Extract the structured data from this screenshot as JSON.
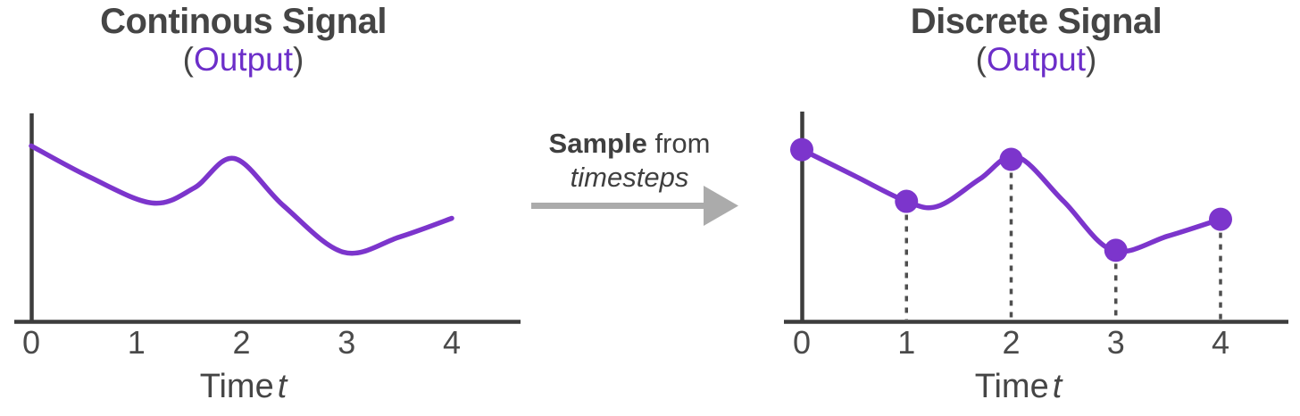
{
  "colors": {
    "background": "#ffffff",
    "curve_purple": "#7c35cc",
    "text_purple": "#6c2ec9",
    "title_gray": "#454545",
    "label_gray": "#4a4a4a",
    "axis_gray": "#3d3d3d",
    "dash_gray": "#4f4f4f",
    "arrow_gray": "#ababab",
    "annotation_gray": "#3f3f3f"
  },
  "transform_label": {
    "line1_bold": "Sample",
    "line1_rest": " from",
    "line2_italic": "timesteps"
  },
  "chart_data": [
    {
      "id": "continuous-signal",
      "type": "line",
      "title": "Continous Signal",
      "subtitle_open": "(",
      "subtitle": "Output",
      "subtitle_close": ")",
      "xlabel": "Time",
      "xlabel_var": "t",
      "x_ticks": [
        "0",
        "1",
        "2",
        "3",
        "4"
      ],
      "x_range": [
        0,
        4
      ],
      "ylim": [
        0,
        1
      ],
      "grid": false,
      "legend": "none",
      "curve": [
        [
          0.0,
          0.758
        ],
        [
          0.55,
          0.625
        ],
        [
          1.15,
          0.512
        ],
        [
          1.55,
          0.577
        ],
        [
          1.93,
          0.704
        ],
        [
          2.4,
          0.5
        ],
        [
          2.97,
          0.3
        ],
        [
          3.5,
          0.365
        ],
        [
          4.0,
          0.446
        ]
      ],
      "markers": [],
      "drop_lines": false
    },
    {
      "id": "discrete-signal",
      "type": "line",
      "title": "Discrete Signal",
      "subtitle_open": "(",
      "subtitle": "Output",
      "subtitle_close": ")",
      "xlabel": "Time",
      "xlabel_var": "t",
      "x_ticks": [
        "0",
        "1",
        "2",
        "3",
        "4"
      ],
      "x_range": [
        0,
        4
      ],
      "ylim": [
        0,
        1
      ],
      "grid": false,
      "legend": "none",
      "curve": [
        [
          0.0,
          0.742
        ],
        [
          0.5,
          0.63
        ],
        [
          1.0,
          0.519
        ],
        [
          1.3,
          0.498
        ],
        [
          1.7,
          0.615
        ],
        [
          2.05,
          0.712
        ],
        [
          2.5,
          0.52
        ],
        [
          2.97,
          0.308
        ],
        [
          3.5,
          0.37
        ],
        [
          4.0,
          0.442
        ]
      ],
      "markers": [
        [
          0,
          0.742
        ],
        [
          1,
          0.519
        ],
        [
          2,
          0.7
        ],
        [
          3,
          0.308
        ],
        [
          4,
          0.442
        ]
      ],
      "drop_lines": true
    }
  ]
}
